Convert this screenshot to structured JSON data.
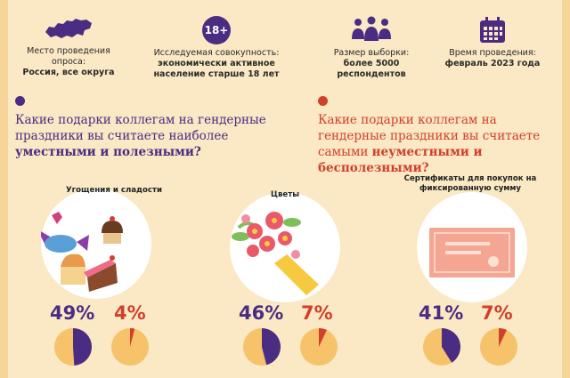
{
  "header": {
    "place": {
      "label": "Место проведения опроса:",
      "value": "Россия, все округа",
      "icon": "russia-map-icon"
    },
    "audience": {
      "badge": "18+",
      "label": "Исследуемая совокупность:",
      "value": "экономически активное население старше 18 лет",
      "icon": "age-badge-icon"
    },
    "sample": {
      "label": "Размер выборки:",
      "value": "более 5000 респондентов",
      "icon": "people-group-icon"
    },
    "time": {
      "label": "Время проведения:",
      "value": "февраль 2023 года",
      "icon": "calendar-icon"
    }
  },
  "questions": {
    "useful": {
      "text_plain": "Какие подарки коллегам на гендерные праздники вы считаете наиболее",
      "text_bold": "уместными и полезными?"
    },
    "useless": {
      "text_plain": "Какие подарки коллегам на гендерные праздники вы считаете самыми",
      "text_bold": "неуместными и бесполезными?"
    }
  },
  "colors": {
    "purple": "#4b2c83",
    "red": "#d0402b",
    "pie_bg": "#f6c26a",
    "background": "#fbe8c4"
  },
  "chart_data": {
    "type": "pie",
    "categories": [
      "Угощения и сладости",
      "Цветы",
      "Сертификаты для покупок на фиксированную сумму"
    ],
    "series": [
      {
        "name": "уместными и полезными",
        "values": [
          49,
          46,
          41
        ]
      },
      {
        "name": "неуместными и бесполезными",
        "values": [
          4,
          7,
          7
        ]
      }
    ],
    "labels": {
      "useful": [
        "49%",
        "46%",
        "41%"
      ],
      "useless": [
        "4%",
        "7%",
        "7%"
      ]
    }
  }
}
